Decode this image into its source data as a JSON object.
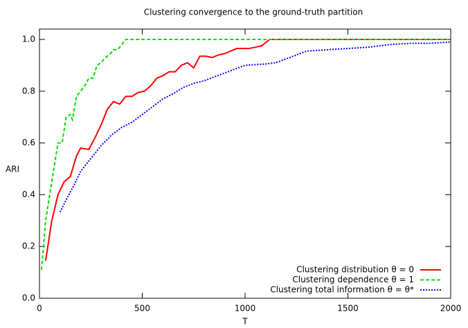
{
  "chart_data": {
    "type": "line",
    "title": "Clustering convergence to the ground-truth partition",
    "xlabel": "T",
    "ylabel": "ARI",
    "xlim": [
      0,
      2000
    ],
    "ylim": [
      0,
      1.04
    ],
    "xticks": [
      0,
      500,
      1000,
      1500,
      2000
    ],
    "yticks": [
      {
        "value": 0,
        "label": "0.0"
      },
      0.2,
      0.4,
      0.6,
      0.8,
      {
        "value": 1,
        "label": "1.0"
      }
    ],
    "legend": "lower right",
    "series": [
      {
        "name": "Clustering distribution θ = 0",
        "color": "#ff0000",
        "style": "solid",
        "x": [
          30,
          60,
          90,
          120,
          150,
          180,
          200,
          240,
          270,
          300,
          330,
          360,
          390,
          420,
          450,
          480,
          510,
          540,
          570,
          600,
          630,
          660,
          690,
          720,
          750,
          780,
          810,
          840,
          870,
          900,
          930,
          960,
          990,
          1020,
          1050,
          1080,
          1120,
          2000
        ],
        "values": [
          0.145,
          0.3,
          0.4,
          0.45,
          0.47,
          0.55,
          0.58,
          0.575,
          0.62,
          0.67,
          0.73,
          0.76,
          0.75,
          0.78,
          0.78,
          0.795,
          0.8,
          0.82,
          0.85,
          0.86,
          0.875,
          0.875,
          0.9,
          0.91,
          0.89,
          0.935,
          0.935,
          0.93,
          0.94,
          0.945,
          0.955,
          0.965,
          0.965,
          0.965,
          0.97,
          0.975,
          1.0,
          1.0
        ]
      },
      {
        "name": "Clustering dependence θ = 1",
        "color": "#00dd00",
        "style": "dashed",
        "x": [
          10,
          30,
          50,
          70,
          90,
          110,
          130,
          150,
          160,
          180,
          200,
          220,
          240,
          260,
          280,
          300,
          320,
          340,
          360,
          380,
          400,
          420,
          2000
        ],
        "values": [
          0.11,
          0.3,
          0.4,
          0.5,
          0.6,
          0.6,
          0.7,
          0.71,
          0.69,
          0.78,
          0.8,
          0.82,
          0.85,
          0.85,
          0.9,
          0.91,
          0.93,
          0.94,
          0.96,
          0.96,
          0.98,
          1.0,
          1.0
        ]
      },
      {
        "name": "Clustering total information θ = θ*",
        "color": "#0000ff",
        "style": "dotted",
        "x": [
          100,
          130,
          170,
          200,
          250,
          300,
          350,
          400,
          450,
          500,
          550,
          600,
          650,
          700,
          750,
          800,
          850,
          900,
          950,
          1000,
          1100,
          1150,
          1200,
          1250,
          1300,
          1400,
          1500,
          1600,
          1700,
          1800,
          1900,
          2000
        ],
        "values": [
          0.333,
          0.38,
          0.44,
          0.49,
          0.54,
          0.59,
          0.63,
          0.66,
          0.68,
          0.71,
          0.74,
          0.77,
          0.79,
          0.815,
          0.83,
          0.84,
          0.855,
          0.87,
          0.885,
          0.9,
          0.905,
          0.91,
          0.925,
          0.94,
          0.955,
          0.96,
          0.965,
          0.97,
          0.98,
          0.985,
          0.985,
          0.99
        ]
      }
    ]
  }
}
